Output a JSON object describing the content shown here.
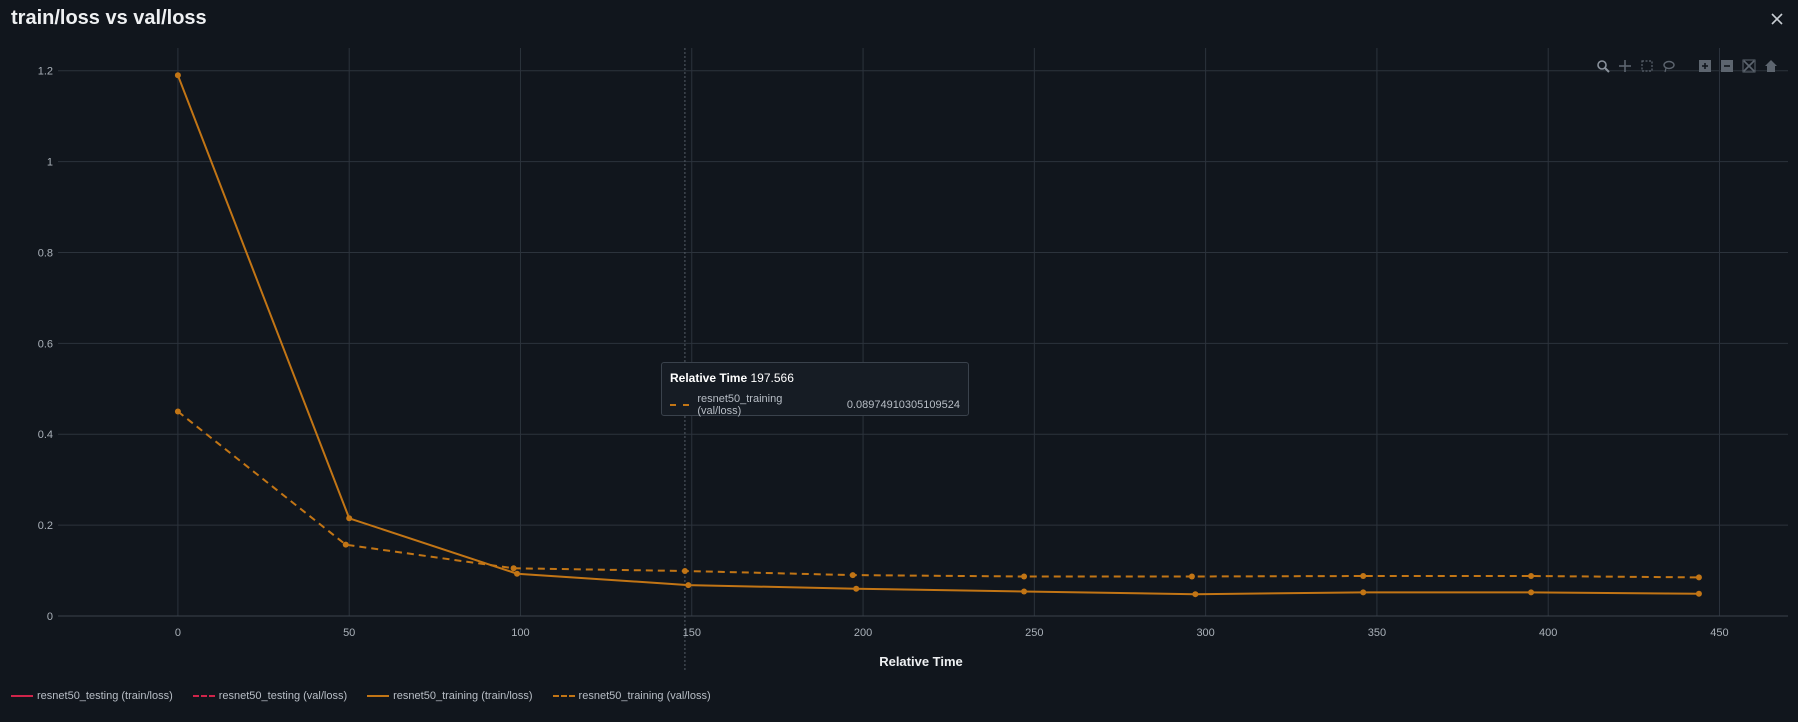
{
  "window": {
    "title": "train/loss vs val/loss",
    "close_icon": "close-icon"
  },
  "modebar": {
    "icons": [
      "zoom-icon",
      "pan-icon",
      "box-select-icon",
      "lasso-icon",
      "zoom-in-icon",
      "zoom-out-icon",
      "autoscale-icon",
      "reset-axes-icon"
    ]
  },
  "tooltip": {
    "header_label": "Relative Time",
    "header_value": "197.566",
    "series_name": "resnet50_training (val/loss)",
    "series_value": "0.08974910305109524",
    "color": "#c27515"
  },
  "chart_data": {
    "type": "line",
    "xlabel": "Relative Time",
    "ylabel": "",
    "xlim": [
      -35,
      470
    ],
    "ylim": [
      0,
      1.25
    ],
    "x_ticks": [
      0,
      50,
      100,
      150,
      200,
      250,
      300,
      350,
      400,
      450
    ],
    "y_ticks": [
      0,
      0.2,
      0.4,
      0.6,
      0.8,
      1,
      1.2
    ],
    "y_tick_labels": [
      "0",
      "0.2",
      "0.4",
      "0.6",
      "0.8",
      "1",
      "1.2"
    ],
    "grid": true,
    "hover_x": 148,
    "series": [
      {
        "name": "resnet50_testing (train/loss)",
        "color": "#d0244a",
        "dash": "solid",
        "x": [],
        "y": []
      },
      {
        "name": "resnet50_testing (val/loss)",
        "color": "#d0244a",
        "dash": "dash",
        "x": [],
        "y": []
      },
      {
        "name": "resnet50_training (train/loss)",
        "color": "#c27515",
        "dash": "solid",
        "x": [
          0,
          50,
          99,
          149,
          198,
          247,
          297,
          346,
          395,
          444
        ],
        "y": [
          1.19,
          0.215,
          0.093,
          0.068,
          0.06,
          0.054,
          0.048,
          0.052,
          0.052,
          0.049
        ]
      },
      {
        "name": "resnet50_training (val/loss)",
        "color": "#c27515",
        "dash": "dash",
        "x": [
          0,
          49,
          98,
          148,
          197,
          247,
          296,
          346,
          395,
          444
        ],
        "y": [
          0.45,
          0.157,
          0.105,
          0.099,
          0.09,
          0.087,
          0.087,
          0.088,
          0.088,
          0.085
        ]
      }
    ],
    "legend_position": "bottom-left"
  }
}
